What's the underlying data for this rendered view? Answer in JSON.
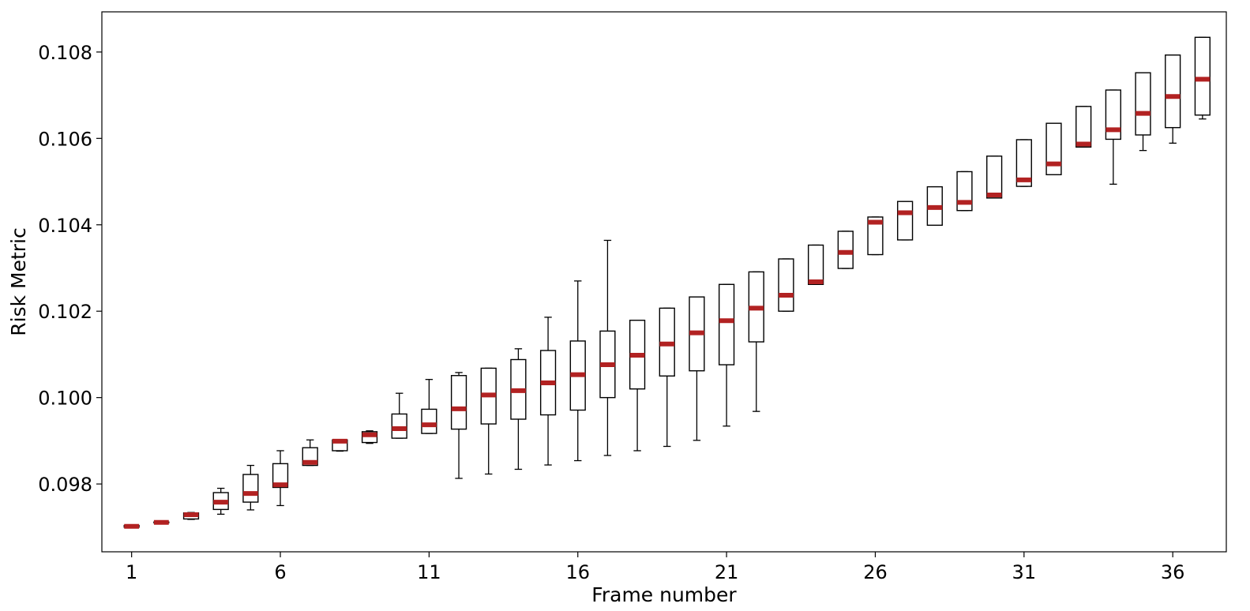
{
  "chart_data": {
    "type": "box",
    "xlabel": "Frame number",
    "ylabel": "Risk Metric",
    "xlim": [
      0,
      37.8
    ],
    "ylim": [
      0.09643,
      0.10893
    ],
    "x_ticks": [
      1,
      6,
      11,
      16,
      21,
      26,
      31,
      36
    ],
    "x_tick_labels": [
      "1",
      "6",
      "11",
      "16",
      "21",
      "26",
      "31",
      "36"
    ],
    "y_ticks": [
      0.098,
      0.1,
      0.102,
      0.104,
      0.106,
      0.108
    ],
    "y_tick_labels": [
      "0.098",
      "0.100",
      "0.102",
      "0.104",
      "0.106",
      "0.108"
    ],
    "median_color": "#b22222",
    "box_color": "#000000",
    "grid": false,
    "boxes": [
      {
        "x": 1,
        "whislo": 0.097,
        "q1": 0.097,
        "med": 0.09702,
        "q3": 0.09704,
        "whishi": 0.09704
      },
      {
        "x": 2,
        "whislo": 0.0971,
        "q1": 0.0971,
        "med": 0.09711,
        "q3": 0.09712,
        "whishi": 0.09712
      },
      {
        "x": 3,
        "whislo": 0.09718,
        "q1": 0.09719,
        "med": 0.09729,
        "q3": 0.09733,
        "whishi": 0.09734
      },
      {
        "x": 4,
        "whislo": 0.0973,
        "q1": 0.09741,
        "med": 0.09758,
        "q3": 0.0978,
        "whishi": 0.0979
      },
      {
        "x": 5,
        "whislo": 0.0974,
        "q1": 0.09758,
        "med": 0.09778,
        "q3": 0.09822,
        "whishi": 0.09843
      },
      {
        "x": 6,
        "whislo": 0.0975,
        "q1": 0.09792,
        "med": 0.09798,
        "q3": 0.09847,
        "whishi": 0.09877
      },
      {
        "x": 7,
        "whislo": 0.09843,
        "q1": 0.09843,
        "med": 0.0985,
        "q3": 0.09884,
        "whishi": 0.09902
      },
      {
        "x": 8,
        "whislo": 0.09876,
        "q1": 0.09877,
        "med": 0.09899,
        "q3": 0.09902,
        "whishi": 0.09902
      },
      {
        "x": 9,
        "whislo": 0.09894,
        "q1": 0.09896,
        "med": 0.09914,
        "q3": 0.09921,
        "whishi": 0.09923
      },
      {
        "x": 10,
        "whislo": 0.09906,
        "q1": 0.09906,
        "med": 0.09928,
        "q3": 0.09962,
        "whishi": 0.1001
      },
      {
        "x": 11,
        "whislo": 0.09917,
        "q1": 0.09917,
        "med": 0.09937,
        "q3": 0.09973,
        "whishi": 0.10042
      },
      {
        "x": 12,
        "whislo": 0.09813,
        "q1": 0.09927,
        "med": 0.09974,
        "q3": 0.10051,
        "whishi": 0.10058
      },
      {
        "x": 13,
        "whislo": 0.09823,
        "q1": 0.09939,
        "med": 0.10006,
        "q3": 0.10068,
        "whishi": 0.10068
      },
      {
        "x": 14,
        "whislo": 0.09834,
        "q1": 0.0995,
        "med": 0.10016,
        "q3": 0.10088,
        "whishi": 0.10113
      },
      {
        "x": 15,
        "whislo": 0.09844,
        "q1": 0.0996,
        "med": 0.10034,
        "q3": 0.10109,
        "whishi": 0.10186
      },
      {
        "x": 16,
        "whislo": 0.09854,
        "q1": 0.09971,
        "med": 0.10053,
        "q3": 0.10131,
        "whishi": 0.1027
      },
      {
        "x": 17,
        "whislo": 0.09866,
        "q1": 0.1,
        "med": 0.10076,
        "q3": 0.10154,
        "whishi": 0.10364
      },
      {
        "x": 18,
        "whislo": 0.09877,
        "q1": 0.1002,
        "med": 0.10098,
        "q3": 0.10179,
        "whishi": 0.10179
      },
      {
        "x": 19,
        "whislo": 0.09887,
        "q1": 0.1005,
        "med": 0.10124,
        "q3": 0.10207,
        "whishi": 0.10207
      },
      {
        "x": 20,
        "whislo": 0.09901,
        "q1": 0.10062,
        "med": 0.1015,
        "q3": 0.10233,
        "whishi": 0.10233
      },
      {
        "x": 21,
        "whislo": 0.09934,
        "q1": 0.10076,
        "med": 0.10178,
        "q3": 0.10262,
        "whishi": 0.10262
      },
      {
        "x": 22,
        "whislo": 0.09968,
        "q1": 0.10129,
        "med": 0.10207,
        "q3": 0.10291,
        "whishi": 0.10291
      },
      {
        "x": 23,
        "whislo": 0.102,
        "q1": 0.102,
        "med": 0.10237,
        "q3": 0.10321,
        "whishi": 0.10321
      },
      {
        "x": 24,
        "whislo": 0.10262,
        "q1": 0.10262,
        "med": 0.10268,
        "q3": 0.10353,
        "whishi": 0.10353
      },
      {
        "x": 25,
        "whislo": 0.10299,
        "q1": 0.10299,
        "med": 0.10336,
        "q3": 0.10385,
        "whishi": 0.10385
      },
      {
        "x": 26,
        "whislo": 0.10331,
        "q1": 0.10331,
        "med": 0.10406,
        "q3": 0.10418,
        "whishi": 0.10418
      },
      {
        "x": 27,
        "whislo": 0.10365,
        "q1": 0.10365,
        "med": 0.10428,
        "q3": 0.10454,
        "whishi": 0.10454
      },
      {
        "x": 28,
        "whislo": 0.10399,
        "q1": 0.10399,
        "med": 0.1044,
        "q3": 0.10488,
        "whishi": 0.10488
      },
      {
        "x": 29,
        "whislo": 0.10433,
        "q1": 0.10433,
        "med": 0.10452,
        "q3": 0.10523,
        "whishi": 0.10523
      },
      {
        "x": 30,
        "whislo": 0.10462,
        "q1": 0.10462,
        "med": 0.10469,
        "q3": 0.10559,
        "whishi": 0.10559
      },
      {
        "x": 31,
        "whislo": 0.10489,
        "q1": 0.10489,
        "med": 0.10504,
        "q3": 0.10597,
        "whishi": 0.10597
      },
      {
        "x": 32,
        "whislo": 0.10516,
        "q1": 0.10516,
        "med": 0.10541,
        "q3": 0.10635,
        "whishi": 0.10635
      },
      {
        "x": 33,
        "whislo": 0.1058,
        "q1": 0.1058,
        "med": 0.10587,
        "q3": 0.10674,
        "whishi": 0.10674
      },
      {
        "x": 34,
        "whislo": 0.10494,
        "q1": 0.10598,
        "med": 0.1062,
        "q3": 0.10712,
        "whishi": 0.10712
      },
      {
        "x": 35,
        "whislo": 0.10572,
        "q1": 0.10608,
        "med": 0.10658,
        "q3": 0.10752,
        "whishi": 0.10752
      },
      {
        "x": 36,
        "whislo": 0.10589,
        "q1": 0.10625,
        "med": 0.10697,
        "q3": 0.10793,
        "whishi": 0.10793
      },
      {
        "x": 37,
        "whislo": 0.10645,
        "q1": 0.10654,
        "med": 0.10737,
        "q3": 0.10834,
        "whishi": 0.10834
      }
    ]
  }
}
